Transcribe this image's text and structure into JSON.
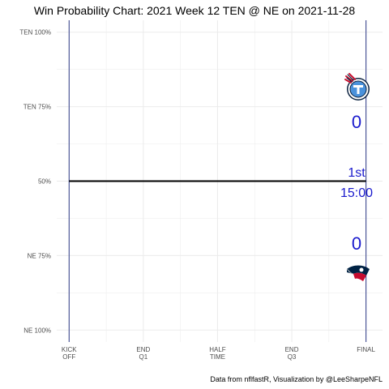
{
  "chart_data": {
    "type": "line",
    "title": "Win Probability Chart: 2021 Week 12 TEN @ NE on 2021-11-28",
    "caption": "Data from nflfastR, Visualization by @LeeSharpeNFL",
    "xlabel": "",
    "ylabel": "",
    "y_ticks": [
      {
        "value": 0.0,
        "label": "NE 100%"
      },
      {
        "value": 0.25,
        "label": "NE 75%"
      },
      {
        "value": 0.5,
        "label": "50%"
      },
      {
        "value": 0.75,
        "label": "TEN 75%"
      },
      {
        "value": 1.0,
        "label": "TEN 100%"
      }
    ],
    "x_ticks": [
      {
        "value": 0,
        "label": [
          "KICK",
          "OFF"
        ]
      },
      {
        "value": 900,
        "label": [
          "END",
          "Q1"
        ]
      },
      {
        "value": 1800,
        "label": [
          "HALF",
          "TIME"
        ]
      },
      {
        "value": 2700,
        "label": [
          "END",
          "Q3"
        ]
      },
      {
        "value": 3600,
        "label": [
          "FINAL"
        ]
      }
    ],
    "xlim": [
      -150,
      3800
    ],
    "ylim": [
      -0.04,
      1.04
    ],
    "grid": true,
    "kickoff_line": 0,
    "final_line": 3600,
    "series": [
      {
        "x": [
          0,
          3600
        ],
        "y": [
          0.5,
          0.5
        ],
        "color": "#000000"
      }
    ],
    "scoreboard": {
      "away_team": "TEN",
      "home_team": "NE",
      "away_score": "0",
      "home_score": "0",
      "period": "1st",
      "clock": "15:00",
      "text_color": "#1a1acd"
    },
    "colors": {
      "grid": "#ebebeb",
      "vertical_lines": "#2e3a87",
      "axis_text": "#4d4d4d",
      "ten_navy": "#0c2340",
      "ten_blue": "#4b92db",
      "ne_navy": "#002244",
      "ne_red": "#c60c30"
    },
    "logos": [
      "titans-logo-icon",
      "patriots-logo-icon"
    ]
  }
}
